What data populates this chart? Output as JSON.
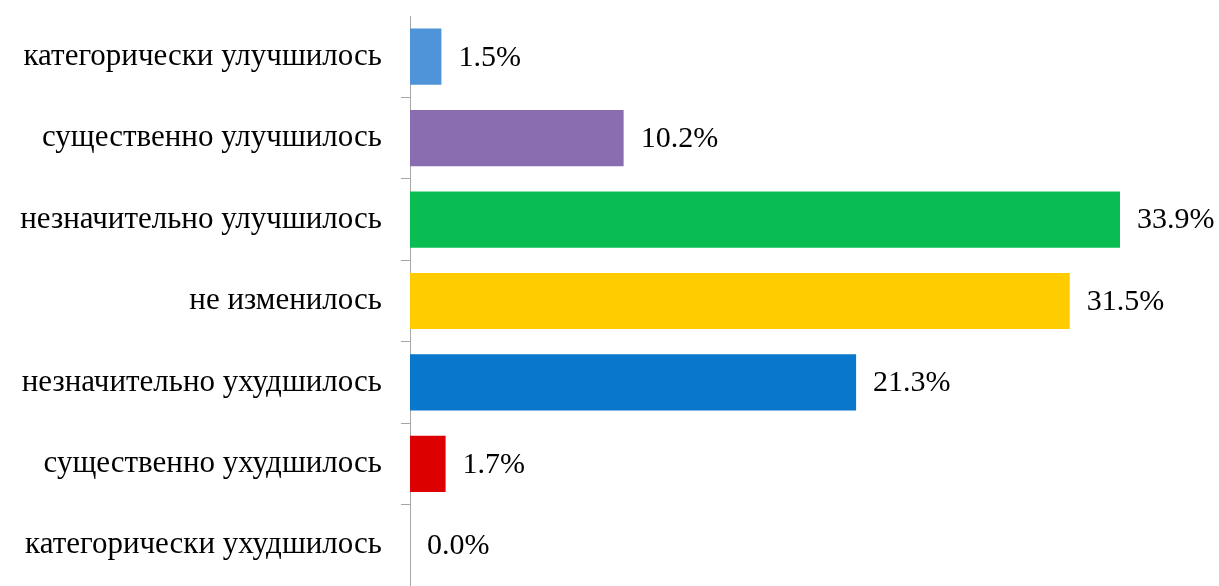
{
  "chart_data": {
    "type": "bar",
    "orientation": "horizontal",
    "categories": [
      "категорически улучшилось",
      "существенно улучшилось",
      "незначительно улучшилось",
      "не изменилось",
      "незначительно ухудшилось",
      "существенно ухудшилось",
      "категорически ухудшилось"
    ],
    "values": [
      1.5,
      10.2,
      33.9,
      31.5,
      21.3,
      1.7,
      0
    ],
    "colors": [
      "#4f93d8",
      "#8a6cb0",
      "#0abd53",
      "#ffcc00",
      "#0877cc",
      "#dc0000",
      "#c00000"
    ],
    "value_labels": [
      "1.5%",
      "10.2%",
      "33.9%",
      "31.5%",
      "21.3%",
      "1.7%",
      "0.0%"
    ]
  }
}
